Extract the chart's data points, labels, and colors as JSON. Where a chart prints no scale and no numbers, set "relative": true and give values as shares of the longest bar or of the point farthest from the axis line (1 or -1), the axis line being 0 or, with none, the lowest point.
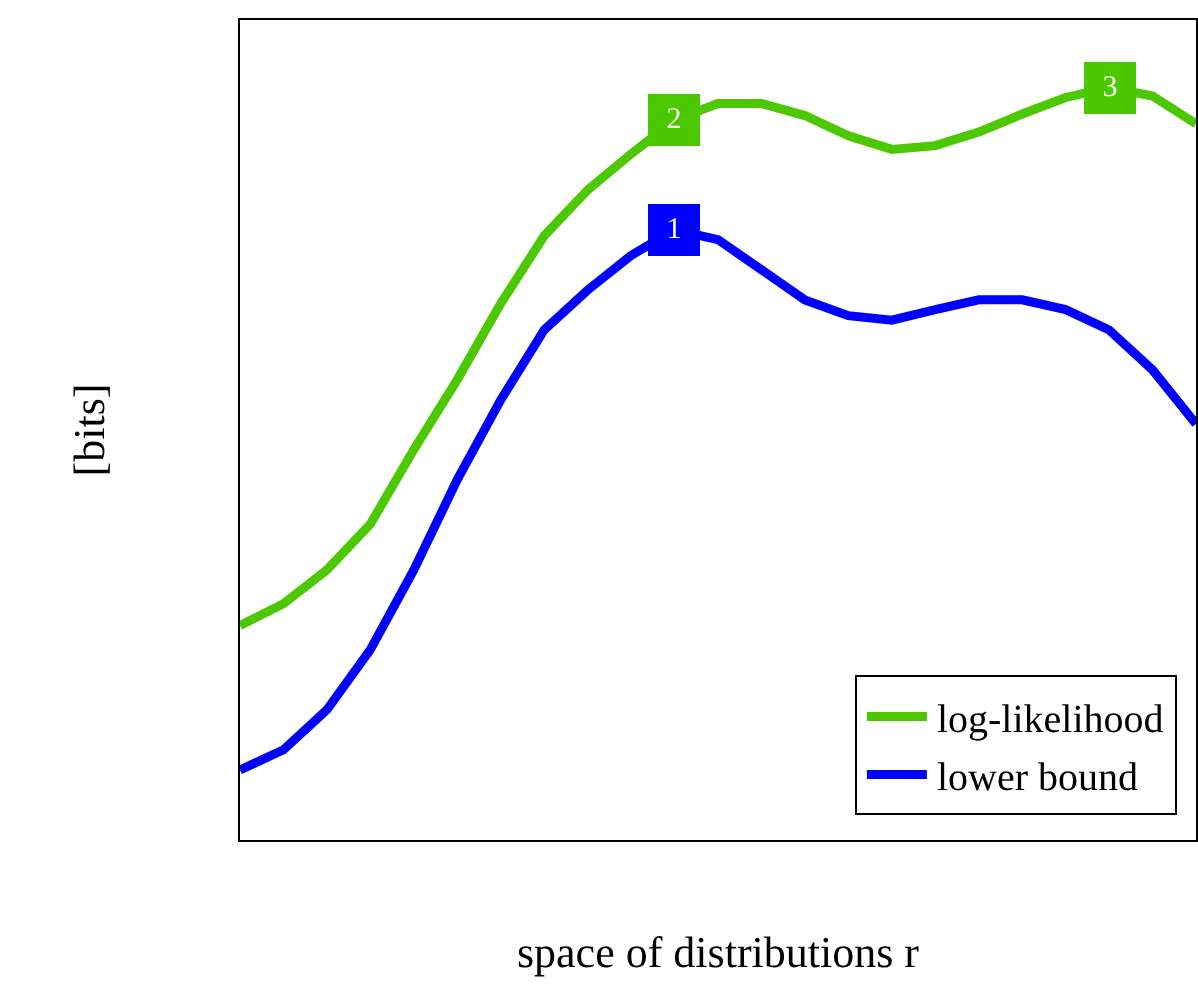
{
  "chart_data": {
    "type": "line",
    "relative": true,
    "xlabel": "space of distributions r",
    "ylabel": "[bits]",
    "categories": [
      null,
      null,
      null,
      null,
      null,
      null,
      null,
      null,
      null,
      null,
      null,
      null,
      null,
      null,
      null,
      null,
      null,
      null,
      null,
      null,
      null,
      null,
      null
    ],
    "series": [
      {
        "name": "log-likelihood",
        "color": "#4cc800",
        "values": [
          0.285,
          0.314,
          0.359,
          0.42,
          0.519,
          0.612,
          0.713,
          0.803,
          0.864,
          0.912,
          0.957,
          0.979,
          0.979,
          0.963,
          0.936,
          0.918,
          0.923,
          0.941,
          0.965,
          0.987,
          1.0,
          0.989,
          0.952
        ]
      },
      {
        "name": "lower bound",
        "color": "#0000ff",
        "values": [
          0.093,
          0.12,
          0.173,
          0.253,
          0.359,
          0.479,
          0.585,
          0.678,
          0.731,
          0.777,
          0.811,
          0.798,
          0.758,
          0.718,
          0.697,
          0.691,
          0.705,
          0.718,
          0.718,
          0.705,
          0.678,
          0.625,
          0.553
        ]
      }
    ],
    "annotations": [
      {
        "text": "1",
        "y": 0.811
      },
      {
        "text": "2",
        "y": 0.957
      },
      {
        "text": "3",
        "y": 1.0
      }
    ],
    "legend": "bottom right",
    "grid": false,
    "marker": "none",
    "line_style": "solid"
  }
}
